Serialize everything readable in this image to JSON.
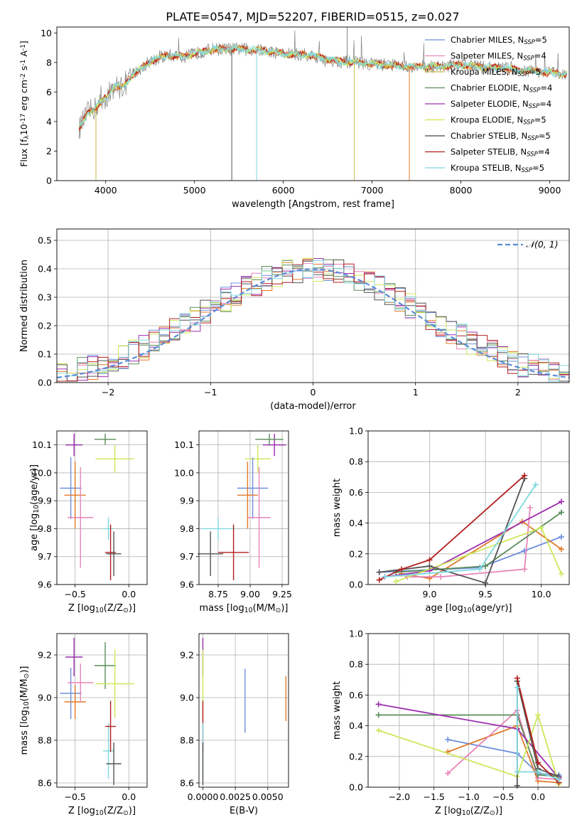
{
  "title": "PLATE=0547, MJD=52207, FIBERID=0515, z=0.027",
  "colors": [
    "#6f8fdc",
    "#e4828f",
    "#c7d240",
    "#5a8d5a",
    "#a12db2",
    "#e8e34a",
    "#555555",
    "#b21f1f",
    "#7fd8e0"
  ],
  "order_colors_named": {
    "blue": "#6f8fdc",
    "orange": "#e07b2a",
    "pink": "#e885b9",
    "green": "#5a8d5a",
    "purple": "#9c2fae",
    "lime": "#cde85a",
    "dark": "#555555",
    "red": "#b21f1f",
    "cyan": "#7fd8e0"
  },
  "chart_data": [
    {
      "id": "spectrum",
      "type": "line",
      "title": "PLATE=0547, MJD=52207, FIBERID=0515, z=0.027",
      "xlabel": "wavelength [Angstrom, rest frame]",
      "ylabel": "Flux [f$_\\lambda$10$^{-17}$ erg cm$^{-2}$ s$^{-1}$ A$^{-1}$]",
      "xlim": [
        3450,
        9220
      ],
      "ylim": [
        0,
        10.4
      ],
      "xticks": [
        4000,
        5000,
        6000,
        7000,
        8000,
        9000
      ],
      "yticks": [
        0,
        2,
        4,
        6,
        8,
        10
      ],
      "grid": false,
      "legend_position": "top-right",
      "legend": [
        {
          "label": "Chabrier MILES, N",
          "sub": "SSP",
          "suffix": "=5",
          "color": "#6f8fdc"
        },
        {
          "label": "Salpeter MILES, N",
          "sub": "SSP",
          "suffix": "=4",
          "color": "#e885b9"
        },
        {
          "label": "Kroupa MILES, N",
          "sub": "SSP",
          "suffix": "=5",
          "color": "#c7b84a"
        },
        {
          "label": "Chabrier ELODIE, N",
          "sub": "SSP",
          "suffix": "=4",
          "color": "#5a8d5a"
        },
        {
          "label": "Salpeter ELODIE, N",
          "sub": "SSP",
          "suffix": "=4",
          "color": "#9c2fae"
        },
        {
          "label": "Kroupa ELODIE, N",
          "sub": "SSP",
          "suffix": "=5",
          "color": "#d9e24a"
        },
        {
          "label": "Chabrier STELIB, N",
          "sub": "SSP",
          "suffix": "=5",
          "color": "#444444"
        },
        {
          "label": "Salpeter STELIB, N",
          "sub": "SSP",
          "suffix": "=4",
          "color": "#b21f1f"
        },
        {
          "label": "Kroupa STELIB, N",
          "sub": "SSP",
          "suffix": "=5",
          "color": "#7fd8e0"
        }
      ],
      "continuum": [
        [
          3700,
          3.5
        ],
        [
          3800,
          4.6
        ],
        [
          3900,
          5.0
        ],
        [
          4000,
          5.6
        ],
        [
          4100,
          6.4
        ],
        [
          4200,
          6.3
        ],
        [
          4300,
          7.2
        ],
        [
          4400,
          7.6
        ],
        [
          4500,
          8.1
        ],
        [
          4700,
          8.5
        ],
        [
          4900,
          8.4
        ],
        [
          5000,
          8.6
        ],
        [
          5200,
          8.9
        ],
        [
          5500,
          8.9
        ],
        [
          5800,
          8.8
        ],
        [
          6000,
          8.6
        ],
        [
          6300,
          8.5
        ],
        [
          6600,
          8.1
        ],
        [
          7000,
          7.9
        ],
        [
          7200,
          7.8
        ],
        [
          7500,
          7.7
        ],
        [
          8000,
          7.8
        ],
        [
          8500,
          7.6
        ],
        [
          9000,
          7.3
        ],
        [
          9200,
          7.2
        ]
      ]
    },
    {
      "id": "residuals",
      "type": "bar",
      "xlabel": "(data-model)/error",
      "ylabel": "Normed distribution",
      "xlim": [
        -2.5,
        2.5
      ],
      "ylim": [
        0,
        0.54
      ],
      "xticks": [
        -2,
        -1,
        0,
        1,
        2
      ],
      "yticks": [
        0.0,
        0.1,
        0.2,
        0.3,
        0.4,
        0.5
      ],
      "grid": true,
      "legend_position": "top-right",
      "legend": [
        {
          "label": "𝒩(0, 1)",
          "color": "#5b8bd6"
        }
      ],
      "bin_width": 0.1
    },
    {
      "id": "age-vs-Z",
      "type": "scatter",
      "xlabel": "Z [log$_{10}$(Z/Z$_\\odot$)]",
      "ylabel": "age  [log$_{10}$(age/yr)]",
      "xlim": [
        -0.67,
        0.17
      ],
      "ylim": [
        9.6,
        10.15
      ],
      "xticks": [
        -0.5,
        0.0
      ],
      "yticks": [
        9.6,
        9.7,
        9.8,
        9.9,
        10.0,
        10.1
      ],
      "grid": true,
      "points": [
        {
          "x": -0.51,
          "y": 10.1,
          "xerr": 0.08,
          "yerr": 0.04,
          "color": "#9c2fae"
        },
        {
          "x": -0.22,
          "y": 10.12,
          "xerr": 0.1,
          "yerr": 0.02,
          "color": "#5a8d5a"
        },
        {
          "x": -0.13,
          "y": 10.05,
          "xerr": 0.18,
          "yerr": 0.05,
          "color": "#cde85a"
        },
        {
          "x": -0.54,
          "y": 9.945,
          "xerr": 0.1,
          "yerr": 0.11,
          "color": "#6f8fdc"
        },
        {
          "x": -0.5,
          "y": 9.92,
          "xerr": 0.1,
          "yerr": 0.12,
          "color": "#e07b2a"
        },
        {
          "x": -0.45,
          "y": 9.84,
          "xerr": 0.12,
          "yerr": 0.18,
          "color": "#e885b9"
        },
        {
          "x": -0.19,
          "y": 9.8,
          "xerr": 0.05,
          "yerr": 0.04,
          "color": "#7fd8e0"
        },
        {
          "x": -0.17,
          "y": 9.715,
          "xerr": 0.05,
          "yerr": 0.1,
          "color": "#b21f1f"
        },
        {
          "x": -0.14,
          "y": 9.71,
          "xerr": 0.07,
          "yerr": 0.08,
          "color": "#555555"
        }
      ]
    },
    {
      "id": "age-vs-mass",
      "type": "scatter",
      "xlabel": "mass [log$_{10}$(M/M$_\\odot$)]",
      "ylabel": "",
      "xlim": [
        8.6,
        9.3
      ],
      "ylim": [
        9.6,
        10.15
      ],
      "xticks": [
        8.75,
        9.0,
        9.25
      ],
      "yticks": [
        9.6,
        9.7,
        9.8,
        9.9,
        10.0,
        10.1
      ],
      "grid": true,
      "points": [
        {
          "x": 9.19,
          "y": 10.1,
          "xerr": 0.09,
          "yerr": 0.04,
          "color": "#9c2fae"
        },
        {
          "x": 9.15,
          "y": 10.12,
          "xerr": 0.11,
          "yerr": 0.02,
          "color": "#5a8d5a"
        },
        {
          "x": 9.06,
          "y": 10.05,
          "xerr": 0.1,
          "yerr": 0.05,
          "color": "#cde85a"
        },
        {
          "x": 9.02,
          "y": 9.945,
          "xerr": 0.12,
          "yerr": 0.11,
          "color": "#6f8fdc"
        },
        {
          "x": 8.98,
          "y": 9.92,
          "xerr": 0.08,
          "yerr": 0.12,
          "color": "#e07b2a"
        },
        {
          "x": 9.07,
          "y": 9.84,
          "xerr": 0.09,
          "yerr": 0.18,
          "color": "#e885b9"
        },
        {
          "x": 8.75,
          "y": 9.8,
          "xerr": 0.13,
          "yerr": 0.04,
          "color": "#7fd8e0"
        },
        {
          "x": 8.87,
          "y": 9.715,
          "xerr": 0.12,
          "yerr": 0.1,
          "color": "#b21f1f"
        },
        {
          "x": 8.69,
          "y": 9.71,
          "xerr": 0.1,
          "yerr": 0.08,
          "color": "#555555"
        }
      ]
    },
    {
      "id": "massweight-vs-age",
      "type": "line",
      "xlabel": "age  [log$_{10}$(age/yr)]",
      "ylabel": "mass weight",
      "xlim": [
        8.45,
        10.25
      ],
      "ylim": [
        0.0,
        1.0
      ],
      "xticks": [
        9.0,
        9.5,
        10.0
      ],
      "yticks": [
        0.0,
        0.2,
        0.4,
        0.6,
        0.8,
        1.0
      ],
      "grid": true,
      "series": [
        {
          "color": "#6f8fdc",
          "points": [
            [
              8.55,
              0.08
            ],
            [
              9.45,
              0.11
            ],
            [
              9.85,
              0.22
            ],
            [
              10.18,
              0.31
            ]
          ]
        },
        {
          "color": "#e07b2a",
          "points": [
            [
              8.75,
              0.07
            ],
            [
              9.0,
              0.04
            ],
            [
              9.83,
              0.41
            ],
            [
              10.18,
              0.23
            ]
          ]
        },
        {
          "color": "#e885b9",
          "points": [
            [
              8.8,
              0.05
            ],
            [
              9.1,
              0.05
            ],
            [
              9.85,
              0.1
            ],
            [
              9.9,
              0.5
            ]
          ]
        },
        {
          "color": "#5a8d5a",
          "points": [
            [
              8.7,
              0.08
            ],
            [
              9.5,
              0.12
            ],
            [
              10.18,
              0.47
            ]
          ]
        },
        {
          "color": "#9c2fae",
          "points": [
            [
              8.6,
              0.05
            ],
            [
              9.0,
              0.09
            ],
            [
              10.18,
              0.54
            ]
          ]
        },
        {
          "color": "#cde85a",
          "points": [
            [
              8.7,
              0.02
            ],
            [
              10.0,
              0.37
            ],
            [
              10.18,
              0.07
            ]
          ]
        },
        {
          "color": "#555555",
          "points": [
            [
              8.55,
              0.08
            ],
            [
              9.0,
              0.12
            ],
            [
              9.5,
              0.01
            ],
            [
              9.85,
              0.69
            ]
          ]
        },
        {
          "color": "#b21f1f",
          "points": [
            [
              8.55,
              0.03
            ],
            [
              8.75,
              0.1
            ],
            [
              9.0,
              0.16
            ],
            [
              9.85,
              0.71
            ]
          ]
        },
        {
          "color": "#7fd8e0",
          "points": [
            [
              8.6,
              0.05
            ],
            [
              9.45,
              0.1
            ],
            [
              9.95,
              0.65
            ]
          ]
        }
      ]
    },
    {
      "id": "mass-vs-Z",
      "type": "scatter",
      "xlabel": "Z [log$_{10}$(Z/Z$_\\odot$)]",
      "ylabel": "mass [log$_{10}$(M/M$_\\odot$)]",
      "xlim": [
        -0.67,
        0.17
      ],
      "ylim": [
        8.58,
        9.3
      ],
      "xticks": [
        -0.5,
        0.0
      ],
      "yticks": [
        8.6,
        8.8,
        9.0,
        9.2
      ],
      "grid": true,
      "points": [
        {
          "x": -0.51,
          "y": 9.19,
          "xerr": 0.08,
          "yerr": 0.09,
          "color": "#9c2fae"
        },
        {
          "x": -0.22,
          "y": 9.15,
          "xerr": 0.1,
          "yerr": 0.11,
          "color": "#5a8d5a"
        },
        {
          "x": -0.13,
          "y": 9.065,
          "xerr": 0.18,
          "yerr": 0.16,
          "color": "#cde85a"
        },
        {
          "x": -0.54,
          "y": 9.02,
          "xerr": 0.1,
          "yerr": 0.12,
          "color": "#6f8fdc"
        },
        {
          "x": -0.5,
          "y": 8.98,
          "xerr": 0.1,
          "yerr": 0.08,
          "color": "#e07b2a"
        },
        {
          "x": -0.45,
          "y": 9.07,
          "xerr": 0.12,
          "yerr": 0.09,
          "color": "#e885b9"
        },
        {
          "x": -0.19,
          "y": 8.75,
          "xerr": 0.05,
          "yerr": 0.13,
          "color": "#7fd8e0"
        },
        {
          "x": -0.17,
          "y": 8.865,
          "xerr": 0.05,
          "yerr": 0.12,
          "color": "#b21f1f"
        },
        {
          "x": -0.14,
          "y": 8.69,
          "xerr": 0.07,
          "yerr": 0.1,
          "color": "#555555"
        }
      ]
    },
    {
      "id": "mass-vs-EBV",
      "type": "scatter",
      "xlabel": "E(B-V)",
      "ylabel": "",
      "xlim": [
        -0.0003,
        0.0066
      ],
      "ylim": [
        8.58,
        9.3
      ],
      "xticks": [
        0.0,
        0.0025,
        0.005
      ],
      "xticklabels": [
        "0.0000",
        "0.0025",
        "0.0050"
      ],
      "yticks": [
        8.6,
        8.8,
        9.0,
        9.2
      ],
      "grid": true,
      "points": [
        {
          "x": 0.0,
          "y": 9.19,
          "yerr": 0.09,
          "color": "#9c2fae"
        },
        {
          "x": 0.0,
          "y": 9.065,
          "yerr": 0.16,
          "color": "#cde85a"
        },
        {
          "x": 0.0,
          "y": 8.865,
          "yerr": 0.12,
          "color": "#b21f1f"
        },
        {
          "x": 0.0,
          "y": 8.75,
          "yerr": 0.13,
          "color": "#7fd8e0"
        },
        {
          "x": 0.0,
          "y": 8.69,
          "yerr": 0.1,
          "color": "#555555"
        },
        {
          "x": 0.00325,
          "y": 8.985,
          "yerr": 0.15,
          "color": "#6f8fdc"
        },
        {
          "x": 0.0064,
          "y": 8.995,
          "yerr": 0.105,
          "color": "#e07b2a"
        }
      ]
    },
    {
      "id": "massweight-vs-Z",
      "type": "line",
      "xlabel": "Z [log$_{10}$(Z/Z$_\\odot$)]",
      "ylabel": "mass weight",
      "xlim": [
        -2.45,
        0.45
      ],
      "ylim": [
        0.0,
        1.0
      ],
      "xticks": [
        -2.0,
        -1.5,
        -1.0,
        -0.5,
        0.0
      ],
      "yticks": [
        0.0,
        0.2,
        0.4,
        0.6,
        0.8,
        1.0
      ],
      "grid": true,
      "series": [
        {
          "color": "#6f8fdc",
          "points": [
            [
              -1.3,
              0.31
            ],
            [
              -0.3,
              0.22
            ],
            [
              0.0,
              0.09
            ],
            [
              0.3,
              0.08
            ]
          ]
        },
        {
          "color": "#e07b2a",
          "points": [
            [
              -1.3,
              0.23
            ],
            [
              -0.3,
              0.4
            ],
            [
              0.0,
              0.04
            ],
            [
              0.3,
              0.03
            ]
          ]
        },
        {
          "color": "#e885b9",
          "points": [
            [
              -1.3,
              0.09
            ],
            [
              -0.3,
              0.5
            ],
            [
              0.0,
              0.06
            ],
            [
              0.3,
              0.05
            ]
          ]
        },
        {
          "color": "#5a8d5a",
          "points": [
            [
              -2.3,
              0.47
            ],
            [
              -0.3,
              0.47
            ],
            [
              0.0,
              0.08
            ],
            [
              0.3,
              0.07
            ]
          ]
        },
        {
          "color": "#9c2fae",
          "points": [
            [
              -2.3,
              0.54
            ],
            [
              -0.3,
              0.38
            ],
            [
              0.3,
              0.06
            ]
          ]
        },
        {
          "color": "#cde85a",
          "points": [
            [
              -2.3,
              0.37
            ],
            [
              -0.3,
              0.07
            ],
            [
              0.0,
              0.47
            ],
            [
              0.3,
              0.02
            ]
          ]
        },
        {
          "color": "#555555",
          "points": [
            [
              -0.3,
              0.01
            ],
            [
              -0.3,
              0.69
            ],
            [
              0.0,
              0.12
            ],
            [
              0.3,
              0.07
            ]
          ]
        },
        {
          "color": "#b21f1f",
          "points": [
            [
              -0.3,
              0.71
            ],
            [
              0.0,
              0.16
            ],
            [
              0.3,
              0.03
            ]
          ]
        },
        {
          "color": "#7fd8e0",
          "points": [
            [
              -0.3,
              0.65
            ],
            [
              -0.3,
              0.1
            ],
            [
              0.0,
              0.1
            ],
            [
              0.3,
              0.05
            ]
          ]
        }
      ]
    }
  ]
}
